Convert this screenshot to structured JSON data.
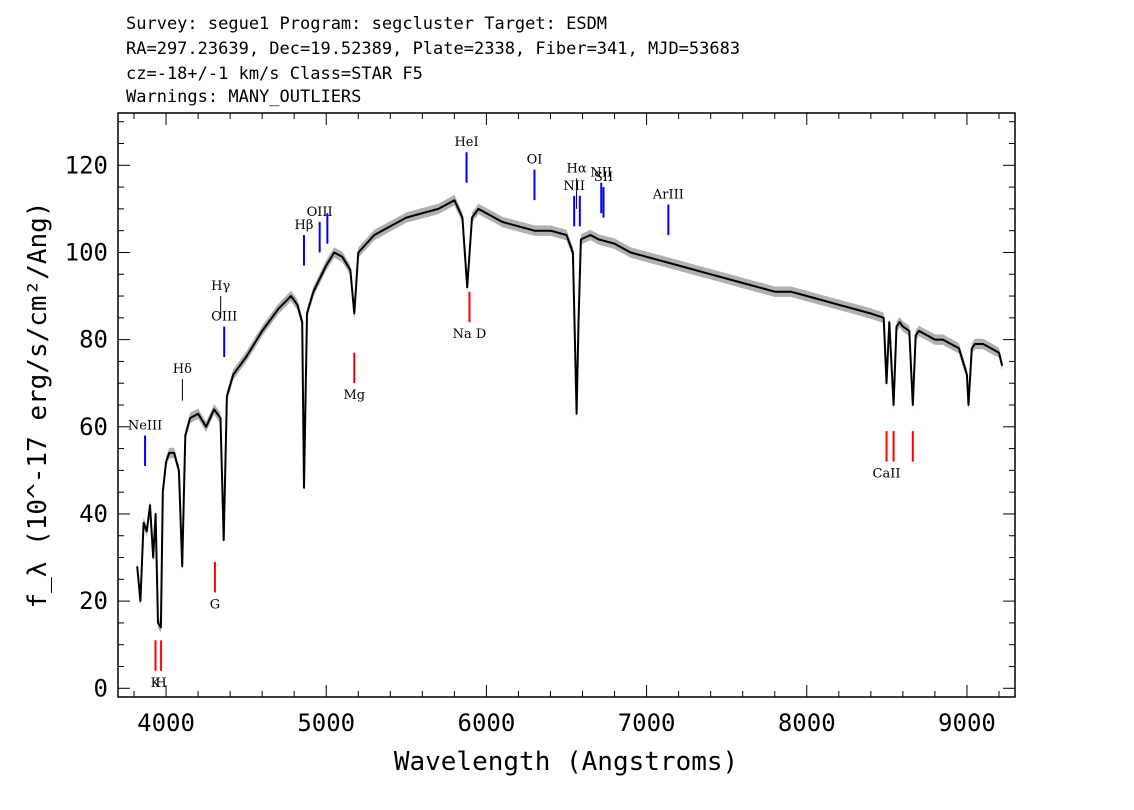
{
  "header": {
    "line1": "Survey: segue1 Program: segcluster Target: ESDM",
    "line2": "RA=297.23639, Dec=19.52389, Plate=2338, Fiber=341, MJD=53683",
    "line3": "cz=-18+/-1 km/s Class=STAR F5",
    "line4": "Warnings: MANY_OUTLIERS"
  },
  "colors": {
    "spectrum": "#000000",
    "error_band": "#b0b0b0",
    "emission_line": "#0000ff",
    "absorption_line": "#ff0000",
    "other_line": "#000000"
  },
  "chart_data": {
    "type": "line",
    "title": "",
    "xlabel": "Wavelength (Angstroms)",
    "ylabel": "f_λ (10^-17 erg/s/cm²/Ang)",
    "xlim": [
      3700,
      9300
    ],
    "ylim": [
      -2,
      132
    ],
    "x_ticks": [
      4000,
      5000,
      6000,
      7000,
      8000,
      9000
    ],
    "y_ticks": [
      0,
      20,
      40,
      60,
      80,
      100,
      120
    ],
    "x_tick_labels": [
      "4000",
      "5000",
      "6000",
      "7000",
      "8000",
      "9000"
    ],
    "y_tick_labels": [
      "0",
      "20",
      "40",
      "60",
      "80",
      "100",
      "120"
    ],
    "series": [
      {
        "x": [
          3820,
          3840,
          3860,
          3880,
          3900,
          3920,
          3935,
          3950,
          3968,
          3980,
          4000,
          4020,
          4050,
          4080,
          4101,
          4120,
          4150,
          4200,
          4250,
          4300,
          4340,
          4360,
          4380,
          4420,
          4500,
          4600,
          4700,
          4780,
          4820,
          4850,
          4861,
          4880,
          4920,
          4960,
          5000,
          5050,
          5100,
          5150,
          5175,
          5200,
          5300,
          5400,
          5500,
          5600,
          5700,
          5800,
          5850,
          5880,
          5895,
          5910,
          5950,
          6000,
          6050,
          6100,
          6200,
          6300,
          6400,
          6500,
          6540,
          6550,
          6563,
          6575,
          6590,
          6650,
          6700,
          6800,
          6900,
          7000,
          7100,
          7200,
          7300,
          7400,
          7500,
          7600,
          7700,
          7800,
          7900,
          8000,
          8100,
          8200,
          8300,
          8400,
          8480,
          8498,
          8515,
          8542,
          8560,
          8580,
          8600,
          8640,
          8662,
          8680,
          8700,
          8750,
          8800,
          8850,
          8900,
          8950,
          9000,
          9010,
          9030,
          9050,
          9100,
          9150,
          9200,
          9220
        ],
        "y": [
          28,
          20,
          38,
          36,
          42,
          30,
          40,
          15,
          14,
          45,
          52,
          54,
          54,
          50,
          28,
          58,
          62,
          63,
          60,
          64,
          62,
          34,
          67,
          72,
          76,
          82,
          87,
          90,
          88,
          84,
          46,
          86,
          91,
          94,
          97,
          100,
          99,
          96,
          86,
          100,
          104,
          106,
          108,
          109,
          110,
          112,
          108,
          92,
          100,
          108,
          110,
          109,
          108,
          107,
          106,
          105,
          105,
          104,
          100,
          84,
          63,
          84,
          103,
          104,
          103,
          102,
          100,
          99,
          98,
          97,
          96,
          95,
          94,
          93,
          92,
          91,
          91,
          90,
          89,
          88,
          87,
          86,
          85,
          70,
          84,
          65,
          83,
          84,
          83,
          82,
          65,
          81,
          82,
          81,
          80,
          80,
          79,
          78,
          72,
          65,
          78,
          79,
          79,
          78,
          77,
          74
        ]
      }
    ],
    "line_markers": [
      {
        "label": "NeIII",
        "wavelength": 3869,
        "kind": "emission",
        "y_low": 51,
        "y_high": 58
      },
      {
        "label": "Hδ",
        "wavelength": 4102,
        "kind": "other",
        "y_low": 66,
        "y_high": 71
      },
      {
        "label": "Hγ",
        "wavelength": 4341,
        "kind": "other",
        "y_low": 85,
        "y_high": 90
      },
      {
        "label": "OIII",
        "wavelength": 4363,
        "kind": "emission",
        "y_low": 76,
        "y_high": 83
      },
      {
        "label": "Hβ",
        "wavelength": 4861,
        "kind": "emission",
        "y_low": 97,
        "y_high": 104
      },
      {
        "label": "OIII",
        "wavelength": 4959,
        "kind": "emission",
        "y_low": 100,
        "y_high": 107
      },
      {
        "label": "",
        "wavelength": 5007,
        "kind": "emission",
        "y_low": 102,
        "y_high": 109
      },
      {
        "label": "HeI",
        "wavelength": 5876,
        "kind": "emission",
        "y_low": 116,
        "y_high": 123
      },
      {
        "label": "OI",
        "wavelength": 6300,
        "kind": "emission",
        "y_low": 112,
        "y_high": 119
      },
      {
        "label": "NII",
        "wavelength": 6548,
        "kind": "emission",
        "y_low": 106,
        "y_high": 113
      },
      {
        "label": "Hα",
        "wavelength": 6563,
        "kind": "other",
        "y_low": 110,
        "y_high": 117
      },
      {
        "label": "",
        "wavelength": 6583,
        "kind": "emission",
        "y_low": 106,
        "y_high": 113
      },
      {
        "label": "NII",
        "wavelength": 6717,
        "kind": "emission",
        "y_low": 109,
        "y_high": 116
      },
      {
        "label": "SII",
        "wavelength": 6731,
        "kind": "emission",
        "y_low": 108,
        "y_high": 115
      },
      {
        "label": "ArIII",
        "wavelength": 7136,
        "kind": "emission",
        "y_low": 104,
        "y_high": 111
      },
      {
        "label": "K",
        "wavelength": 3934,
        "kind": "absorption",
        "y_low": 4,
        "y_high": 11
      },
      {
        "label": "H",
        "wavelength": 3969,
        "kind": "absorption",
        "y_low": 4,
        "y_high": 11
      },
      {
        "label": "G",
        "wavelength": 4305,
        "kind": "absorption",
        "y_low": 22,
        "y_high": 29
      },
      {
        "label": "Mg",
        "wavelength": 5175,
        "kind": "absorption",
        "y_low": 70,
        "y_high": 77
      },
      {
        "label": "Na D",
        "wavelength": 5894,
        "kind": "absorption",
        "y_low": 84,
        "y_high": 91
      },
      {
        "label": "CaII",
        "wavelength": 8498,
        "kind": "absorption",
        "y_low": 52,
        "y_high": 59
      },
      {
        "label": "",
        "wavelength": 8542,
        "kind": "absorption",
        "y_low": 52,
        "y_high": 59
      },
      {
        "label": "",
        "wavelength": 8662,
        "kind": "absorption",
        "y_low": 52,
        "y_high": 59
      }
    ]
  }
}
